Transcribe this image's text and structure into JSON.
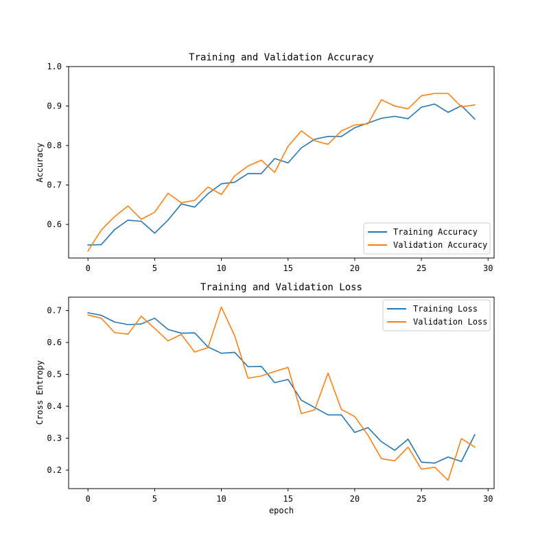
{
  "chart_data": [
    {
      "type": "line",
      "title": "Training and Validation Accuracy",
      "xlabel": "",
      "ylabel": "Accuracy",
      "xlim": [
        -1.45,
        30.45
      ],
      "ylim": [
        0.515,
        1.0
      ],
      "xticks": [
        0,
        5,
        10,
        15,
        20,
        25,
        30
      ],
      "xtick_labels": [
        "0",
        "5",
        "10",
        "15",
        "20",
        "25",
        "30"
      ],
      "yticks": [
        0.6,
        0.7,
        0.8,
        0.9,
        1.0
      ],
      "ytick_labels": [
        "0.6",
        "0.7",
        "0.8",
        "0.9",
        "1.0"
      ],
      "legend_position": "lower-right",
      "x": [
        0,
        1,
        2,
        3,
        4,
        5,
        6,
        7,
        8,
        9,
        10,
        11,
        12,
        13,
        14,
        15,
        16,
        17,
        18,
        19,
        20,
        21,
        22,
        23,
        24,
        25,
        26,
        27,
        28,
        29
      ],
      "series": [
        {
          "name": "Training Accuracy",
          "color": "#1f77b4",
          "values": [
            0.548,
            0.549,
            0.587,
            0.611,
            0.608,
            0.578,
            0.611,
            0.652,
            0.644,
            0.678,
            0.703,
            0.707,
            0.729,
            0.729,
            0.767,
            0.756,
            0.794,
            0.816,
            0.823,
            0.823,
            0.845,
            0.857,
            0.869,
            0.874,
            0.868,
            0.897,
            0.905,
            0.884,
            0.901,
            0.867
          ]
        },
        {
          "name": "Validation Accuracy",
          "color": "#ff7f0e",
          "values": [
            0.533,
            0.586,
            0.62,
            0.647,
            0.613,
            0.631,
            0.679,
            0.655,
            0.661,
            0.695,
            0.676,
            0.723,
            0.748,
            0.763,
            0.732,
            0.798,
            0.837,
            0.812,
            0.803,
            0.837,
            0.852,
            0.855,
            0.916,
            0.9,
            0.893,
            0.926,
            0.932,
            0.932,
            0.898,
            0.903
          ]
        }
      ]
    },
    {
      "type": "line",
      "title": "Training and Validation Loss",
      "xlabel": "epoch",
      "ylabel": "Cross Entropy",
      "xlim": [
        -1.45,
        30.45
      ],
      "ylim": [
        0.142,
        0.742
      ],
      "xticks": [
        0,
        5,
        10,
        15,
        20,
        25,
        30
      ],
      "xtick_labels": [
        "0",
        "5",
        "10",
        "15",
        "20",
        "25",
        "30"
      ],
      "yticks": [
        0.2,
        0.3,
        0.4,
        0.5,
        0.6,
        0.7
      ],
      "ytick_labels": [
        "0.2",
        "0.3",
        "0.4",
        "0.5",
        "0.6",
        "0.7"
      ],
      "legend_position": "upper-right",
      "x": [
        0,
        1,
        2,
        3,
        4,
        5,
        6,
        7,
        8,
        9,
        10,
        11,
        12,
        13,
        14,
        15,
        16,
        17,
        18,
        19,
        20,
        21,
        22,
        23,
        24,
        25,
        26,
        27,
        28,
        29
      ],
      "series": [
        {
          "name": "Training Loss",
          "color": "#1f77b4",
          "values": [
            0.693,
            0.685,
            0.664,
            0.656,
            0.658,
            0.676,
            0.641,
            0.629,
            0.63,
            0.586,
            0.566,
            0.569,
            0.524,
            0.525,
            0.474,
            0.484,
            0.419,
            0.396,
            0.373,
            0.373,
            0.318,
            0.333,
            0.289,
            0.262,
            0.297,
            0.225,
            0.222,
            0.241,
            0.227,
            0.311
          ]
        },
        {
          "name": "Validation Loss",
          "color": "#ff7f0e",
          "values": [
            0.686,
            0.676,
            0.631,
            0.626,
            0.682,
            0.644,
            0.605,
            0.625,
            0.57,
            0.584,
            0.711,
            0.621,
            0.488,
            0.495,
            0.509,
            0.522,
            0.377,
            0.389,
            0.504,
            0.39,
            0.368,
            0.309,
            0.236,
            0.229,
            0.272,
            0.203,
            0.209,
            0.168,
            0.299,
            0.272
          ]
        }
      ]
    }
  ]
}
